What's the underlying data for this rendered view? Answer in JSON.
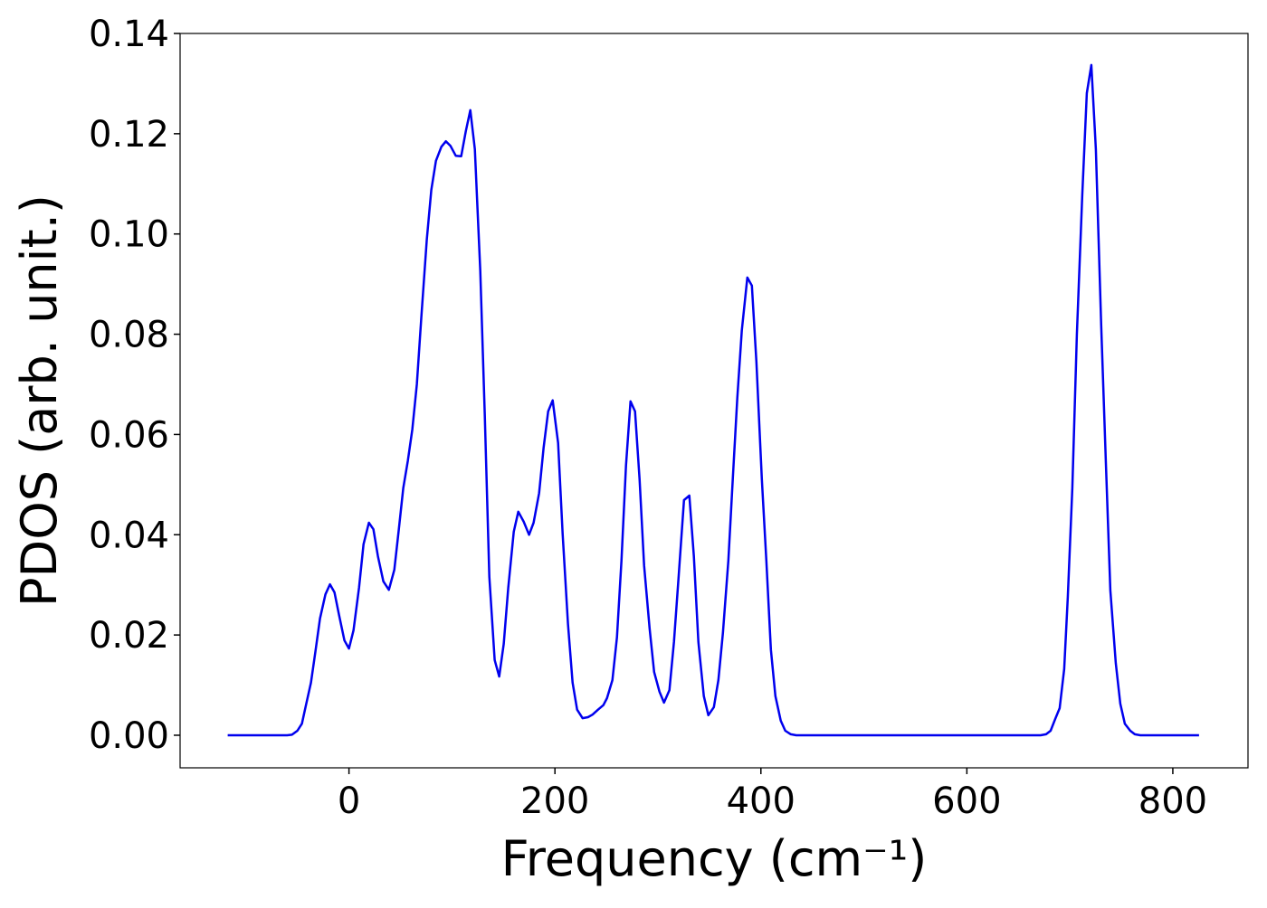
{
  "chart_data": {
    "type": "line",
    "xlabel": "Frequency (cm⁻¹)",
    "ylabel": "PDOS (arb. unit.)",
    "xlim": [
      -164,
      873
    ],
    "ylim": [
      -0.0065,
      0.14
    ],
    "xticks": [
      0,
      200,
      400,
      600,
      800
    ],
    "yticks": [
      {
        "value": 0,
        "label": "0.00"
      },
      {
        "value": 0.02,
        "label": "0.02"
      },
      {
        "value": 0.04,
        "label": "0.04"
      },
      {
        "value": 0.06,
        "label": "0.06"
      },
      {
        "value": 0.08,
        "label": "0.08"
      },
      {
        "value": 0.1,
        "label": "0.10"
      },
      {
        "value": 0.12,
        "label": "0.12"
      },
      {
        "value": 0.14,
        "label": "0.14"
      }
    ],
    "grid": false,
    "series": [
      {
        "color": "#0000ee",
        "x": [
          -117.8,
          -60,
          -55.4,
          -50.1,
          -45.7,
          -42.2,
          -36.9,
          -32.5,
          -28.1,
          -22.9,
          -18.5,
          -14.1,
          -9.7,
          -4.4,
          0,
          4.4,
          9.7,
          14.1,
          19.3,
          23.7,
          28.1,
          33.4,
          38.7,
          44.0,
          48.4,
          52.7,
          57.1,
          61.5,
          65.9,
          70.3,
          75.6,
          80.0,
          84.4,
          89.7,
          94.1,
          98.5,
          103.7,
          109.0,
          113.4,
          117.8,
          122.2,
          127.5,
          131.9,
          136.3,
          141.5,
          145.9,
          150.3,
          154.7,
          160.0,
          164.4,
          169.7,
          174.9,
          179.3,
          184.6,
          189.0,
          193.4,
          197.8,
          203.1,
          207.5,
          212.7,
          217.1,
          221.5,
          226.8,
          232.1,
          236.5,
          241.8,
          247.0,
          250.5,
          255.8,
          260.2,
          264.6,
          269.0,
          273.4,
          277.8,
          282.2,
          286.6,
          291.9,
          296.3,
          301.5,
          305.9,
          311.2,
          315.6,
          320.0,
          325.3,
          330.5,
          334.9,
          339.3,
          344.6,
          349.0,
          354.3,
          358.7,
          363.1,
          368.4,
          372.7,
          377.1,
          381.5,
          386.8,
          391.2,
          395.6,
          400.9,
          405.3,
          409.7,
          414.1,
          419.3,
          423.7,
          429.0,
          434.3,
          671.6,
          676.9,
          681.3,
          685.7,
          690.1,
          694.5,
          698.0,
          702.4,
          706.8,
          712.1,
          716.5,
          720.9,
          725.3,
          730.5,
          734.9,
          739.3,
          744.6,
          749.0,
          753.4,
          758.7,
          763.1,
          768.4,
          825.5
        ],
        "values": [
          0,
          0,
          0.0001,
          0.0009,
          0.0023,
          0.0056,
          0.0105,
          0.0168,
          0.0233,
          0.0281,
          0.0301,
          0.0285,
          0.024,
          0.0189,
          0.0173,
          0.0209,
          0.0294,
          0.0381,
          0.0424,
          0.0411,
          0.0357,
          0.0307,
          0.029,
          0.033,
          0.0411,
          0.0493,
          0.0547,
          0.061,
          0.07,
          0.0835,
          0.0989,
          0.1088,
          0.1146,
          0.1174,
          0.1185,
          0.1176,
          0.1156,
          0.1155,
          0.1205,
          0.1247,
          0.1169,
          0.0926,
          0.0637,
          0.0316,
          0.015,
          0.0117,
          0.0182,
          0.0294,
          0.0406,
          0.0446,
          0.0426,
          0.04,
          0.0424,
          0.0483,
          0.0574,
          0.0646,
          0.0668,
          0.0583,
          0.0402,
          0.0222,
          0.0105,
          0.0051,
          0.0034,
          0.0036,
          0.0041,
          0.0051,
          0.006,
          0.0074,
          0.011,
          0.0195,
          0.0348,
          0.0538,
          0.0666,
          0.0646,
          0.0511,
          0.0339,
          0.0213,
          0.0126,
          0.0087,
          0.0065,
          0.009,
          0.0186,
          0.0312,
          0.0469,
          0.0478,
          0.0357,
          0.0186,
          0.0078,
          0.004,
          0.0056,
          0.011,
          0.0204,
          0.0348,
          0.0511,
          0.0673,
          0.0808,
          0.0913,
          0.0897,
          0.0745,
          0.0511,
          0.0348,
          0.0171,
          0.0078,
          0.0029,
          0.0009,
          0.0002,
          0,
          0,
          0.0002,
          0.0009,
          0.0032,
          0.0054,
          0.0132,
          0.0276,
          0.0493,
          0.0799,
          0.1079,
          0.1281,
          0.1337,
          0.1169,
          0.0817,
          0.0547,
          0.0289,
          0.0144,
          0.0063,
          0.0023,
          0.0009,
          0.0002,
          0,
          0
        ]
      }
    ]
  }
}
